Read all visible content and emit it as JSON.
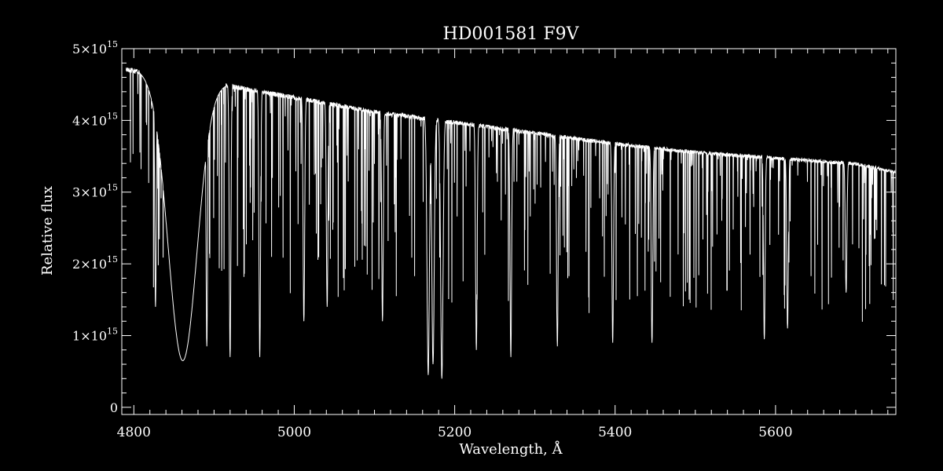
{
  "chart_data": {
    "type": "line",
    "title": "HD001581  F9V",
    "xlabel": "Wavelength, Å",
    "ylabel": "Relative flux",
    "xlim": [
      4785,
      5750
    ],
    "ylim": [
      -100000000000000.0,
      5000000000000000.0
    ],
    "x_ticks": [
      4800,
      5000,
      5200,
      5400,
      5600
    ],
    "x_tick_labels": [
      "4800",
      "5000",
      "5200",
      "5400",
      "5600"
    ],
    "y_ticks": [
      0,
      1000000000000000.0,
      2000000000000000.0,
      3000000000000000.0,
      4000000000000000.0,
      5000000000000000.0
    ],
    "y_tick_labels": [
      {
        "mantissa": "0",
        "exp": ""
      },
      {
        "mantissa": "1×10",
        "exp": "15"
      },
      {
        "mantissa": "2×10",
        "exp": "15"
      },
      {
        "mantissa": "3×10",
        "exp": "15"
      },
      {
        "mantissa": "4×10",
        "exp": "15"
      },
      {
        "mantissa": "5×10",
        "exp": "15"
      }
    ],
    "series": [
      {
        "color": "#ffffff",
        "continuum": [
          [
            4790,
            4750000000000000.0
          ],
          [
            4840,
            4620000000000000.0
          ],
          [
            4900,
            4550000000000000.0
          ],
          [
            5000,
            4350000000000000.0
          ],
          [
            5100,
            4150000000000000.0
          ],
          [
            5200,
            4000000000000000.0
          ],
          [
            5300,
            3850000000000000.0
          ],
          [
            5400,
            3700000000000000.0
          ],
          [
            5500,
            3580000000000000.0
          ],
          [
            5600,
            3500000000000000.0
          ],
          [
            5700,
            3420000000000000.0
          ],
          [
            5750,
            3300000000000000.0
          ]
        ],
        "absorption_lines": [
          {
            "x": 4861,
            "depth_to": 650000000000000.0,
            "width": 18
          },
          {
            "x": 5167,
            "depth_to": 450000000000000.0,
            "width": 1.5
          },
          {
            "x": 5173,
            "depth_to": 600000000000000.0,
            "width": 1.5
          },
          {
            "x": 5184,
            "depth_to": 400000000000000.0,
            "width": 1.5
          },
          {
            "x": 4827,
            "depth_to": 1400000000000000.0,
            "width": 1
          },
          {
            "x": 4891,
            "depth_to": 850000000000000.0,
            "width": 1
          },
          {
            "x": 4920,
            "depth_to": 700000000000000.0,
            "width": 1
          },
          {
            "x": 4957,
            "depth_to": 700000000000000.0,
            "width": 1
          },
          {
            "x": 5012,
            "depth_to": 1200000000000000.0,
            "width": 1
          },
          {
            "x": 5041,
            "depth_to": 1400000000000000.0,
            "width": 1
          },
          {
            "x": 5110,
            "depth_to": 1200000000000000.0,
            "width": 1
          },
          {
            "x": 5227,
            "depth_to": 800000000000000.0,
            "width": 1
          },
          {
            "x": 5270,
            "depth_to": 700000000000000.0,
            "width": 1
          },
          {
            "x": 5328,
            "depth_to": 850000000000000.0,
            "width": 1
          },
          {
            "x": 5397,
            "depth_to": 900000000000000.0,
            "width": 1
          },
          {
            "x": 5446,
            "depth_to": 900000000000000.0,
            "width": 1
          },
          {
            "x": 5586,
            "depth_to": 950000000000000.0,
            "width": 1
          },
          {
            "x": 5615,
            "depth_to": 1100000000000000.0,
            "width": 1
          },
          {
            "x": 5688,
            "depth_to": 1600000000000000.0,
            "width": 1
          }
        ]
      }
    ],
    "grid": false,
    "legend": "none"
  }
}
